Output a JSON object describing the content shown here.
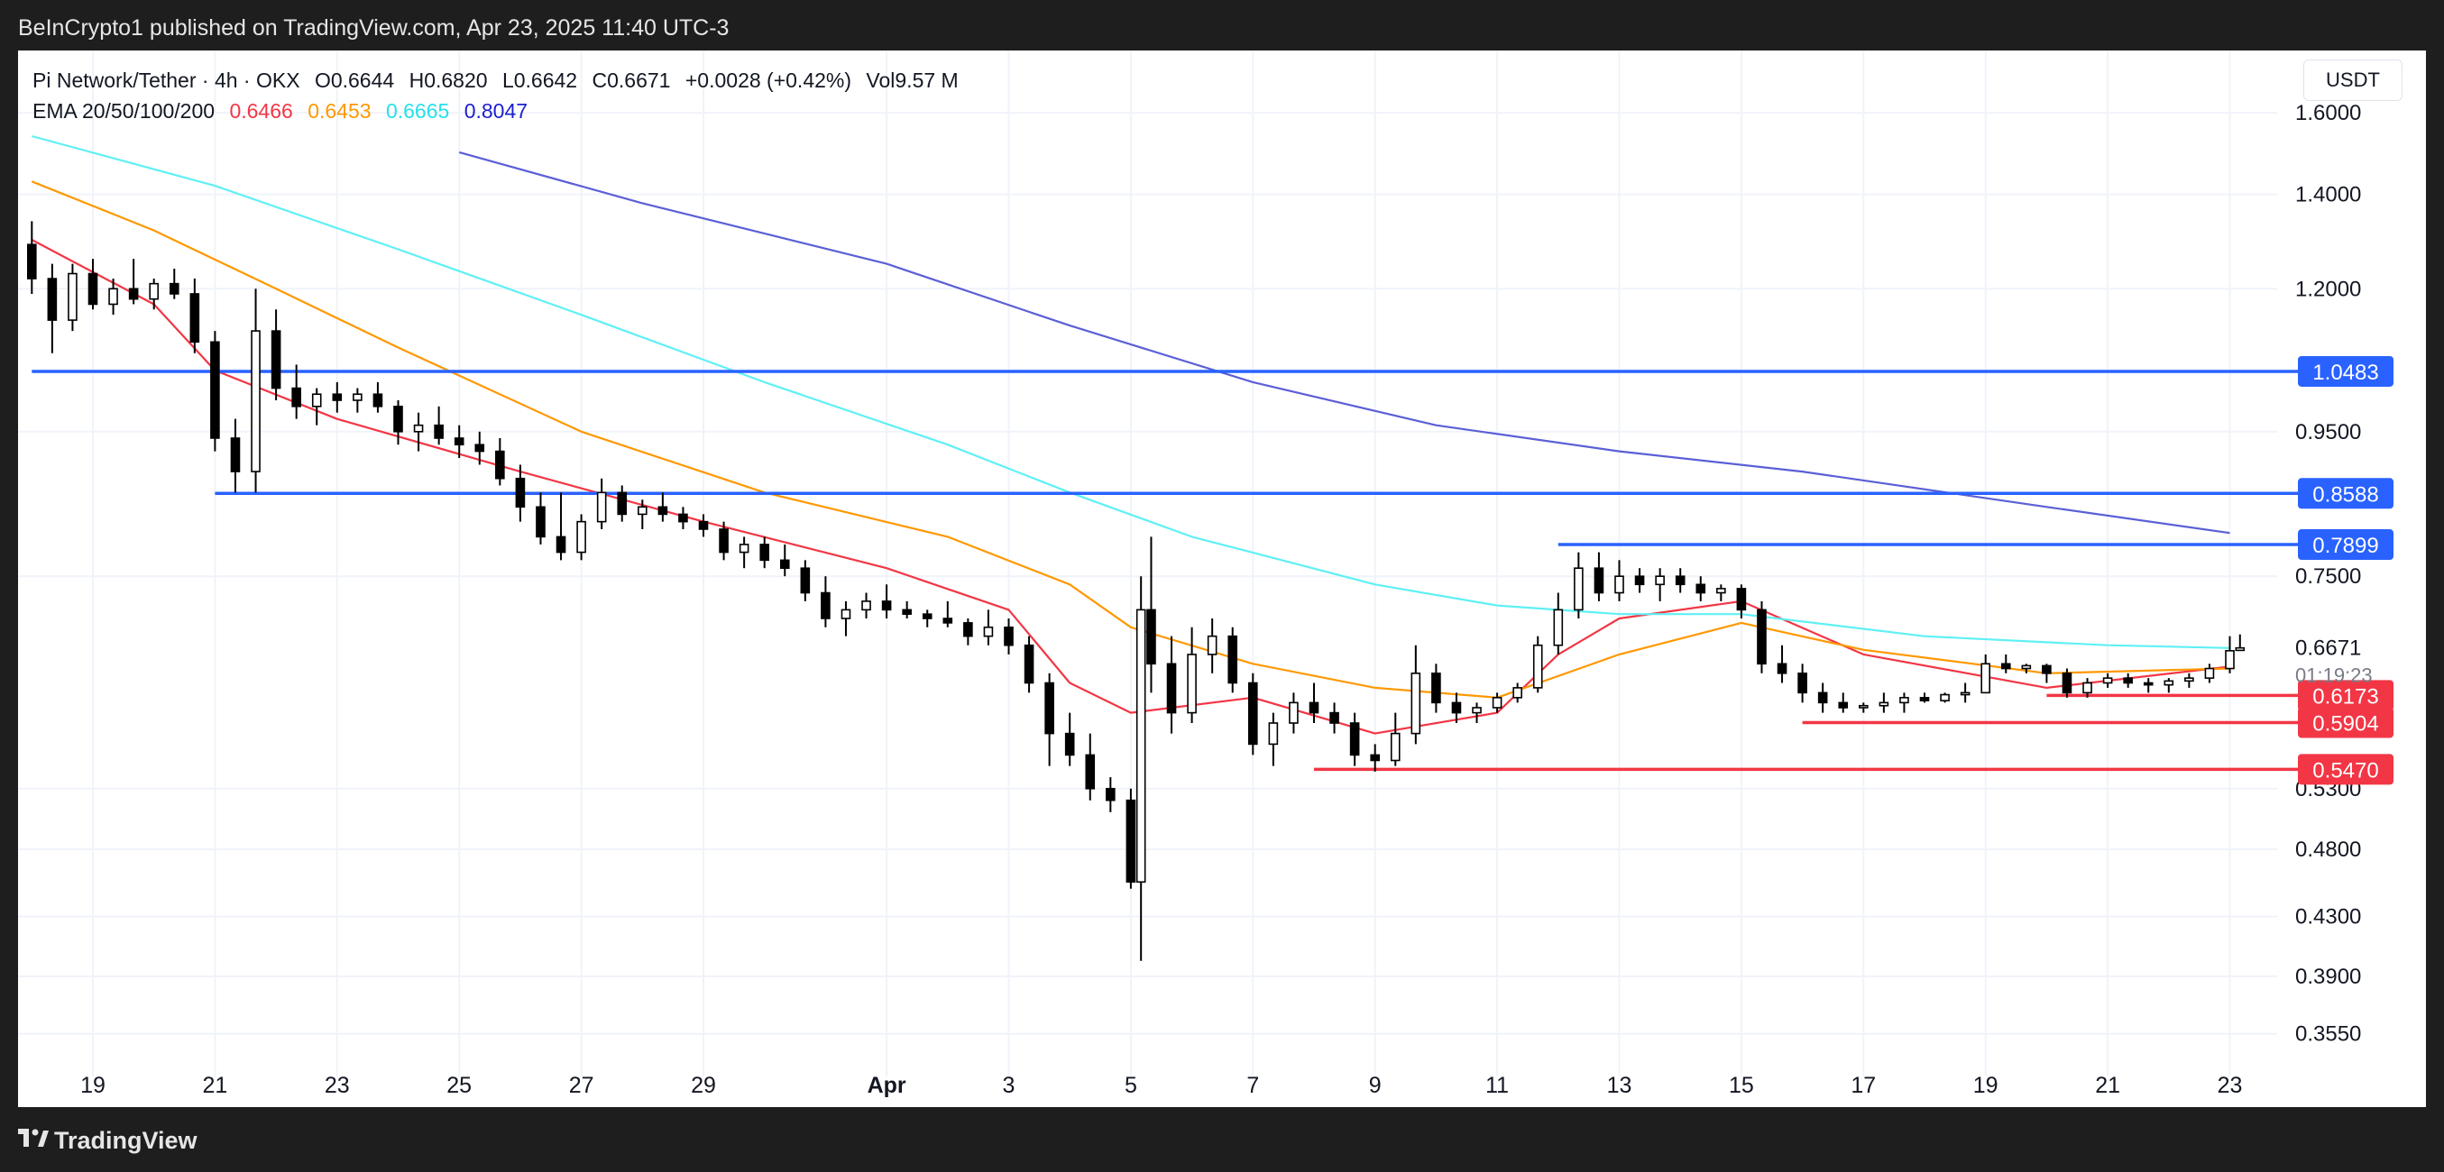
{
  "header": {
    "published_by": "BeInCrypto1 published on TradingView.com, Apr 23, 2025 11:40 UTC-3"
  },
  "legend": {
    "symbol": "Pi Network/Tether · 4h · OKX",
    "open_label": "O",
    "open_value": "0.6644",
    "high_label": "H",
    "high_value": "0.6820",
    "low_label": "L",
    "low_value": "0.6642",
    "close_label": "C",
    "close_value": "0.6671",
    "change": "+0.0028 (+0.42%)",
    "volume_label": "Vol",
    "volume_value": "9.57 M",
    "ema_label": "EMA 20/50/100/200",
    "ema20": "0.6466",
    "ema50": "0.6453",
    "ema100": "0.6665",
    "ema200": "0.8047"
  },
  "currency": "USDT",
  "footer": {
    "brand": "TradingView"
  },
  "chart_data": {
    "type": "candlestick",
    "x_axis_ticks": [
      "19",
      "21",
      "23",
      "25",
      "27",
      "29",
      "Apr",
      "3",
      "5",
      "7",
      "9",
      "11",
      "13",
      "15",
      "17",
      "19",
      "21",
      "23"
    ],
    "y_axis_ticks": [
      "1.6000",
      "1.4000",
      "1.2000",
      "0.9500",
      "0.7500",
      "0.5300",
      "0.4800",
      "0.4300",
      "0.3900",
      "0.3550"
    ],
    "y_scale": "log",
    "ylim": [
      0.34,
      1.72
    ],
    "grid": true,
    "current_price": "0.6671",
    "countdown": "01:19:23",
    "resistance_levels": [
      {
        "value": "1.0483",
        "start_date": "Mar 18",
        "color": "#2962ff"
      },
      {
        "value": "0.8588",
        "start_date": "Mar 21",
        "color": "#2962ff"
      },
      {
        "value": "0.7899",
        "start_date": "Apr 12",
        "color": "#2962ff"
      }
    ],
    "support_levels": [
      {
        "value": "0.6173",
        "start_date": "Apr 20",
        "color": "#f23645"
      },
      {
        "value": "0.5904",
        "start_date": "Apr 16",
        "color": "#f23645"
      },
      {
        "value": "0.5470",
        "start_date": "Apr 8",
        "color": "#f23645"
      }
    ],
    "ema_series": [
      {
        "name": "EMA 20",
        "color": "#f23645",
        "dates": [
          "Mar 18",
          "Mar 20",
          "Mar 21",
          "Mar 23",
          "Mar 26",
          "Mar 29",
          "Apr 1",
          "Apr 3",
          "Apr 4",
          "Apr 5",
          "Apr 7",
          "Apr 9",
          "Apr 11",
          "Apr 12",
          "Apr 13",
          "Apr 15",
          "Apr 17",
          "Apr 20",
          "Apr 23"
        ],
        "values": [
          1.3,
          1.17,
          1.05,
          0.97,
          0.89,
          0.82,
          0.76,
          0.71,
          0.63,
          0.6,
          0.615,
          0.58,
          0.6,
          0.66,
          0.7,
          0.72,
          0.66,
          0.625,
          0.647
        ]
      },
      {
        "name": "EMA 50",
        "color": "#ff9800",
        "dates": [
          "Mar 18",
          "Mar 20",
          "Mar 22",
          "Mar 24",
          "Mar 27",
          "Mar 30",
          "Apr 2",
          "Apr 4",
          "Apr 5",
          "Apr 7",
          "Apr 9",
          "Apr 11",
          "Apr 13",
          "Apr 15",
          "Apr 17",
          "Apr 20",
          "Apr 23"
        ],
        "values": [
          1.43,
          1.32,
          1.2,
          1.09,
          0.95,
          0.86,
          0.8,
          0.74,
          0.69,
          0.65,
          0.625,
          0.615,
          0.66,
          0.695,
          0.665,
          0.64,
          0.645
        ]
      },
      {
        "name": "EMA 100",
        "color": "#5ff0f5",
        "dates": [
          "Mar 18",
          "Mar 21",
          "Mar 24",
          "Mar 27",
          "Mar 30",
          "Apr 2",
          "Apr 4",
          "Apr 6",
          "Apr 9",
          "Apr 11",
          "Apr 13",
          "Apr 15",
          "Apr 18",
          "Apr 21",
          "Apr 23"
        ],
        "values": [
          1.54,
          1.42,
          1.28,
          1.15,
          1.03,
          0.93,
          0.86,
          0.8,
          0.74,
          0.715,
          0.705,
          0.705,
          0.68,
          0.67,
          0.667
        ]
      },
      {
        "name": "EMA 200",
        "color": "#5b5fd6",
        "dates": [
          "Mar 25",
          "Mar 28",
          "Apr 1",
          "Apr 4",
          "Apr 7",
          "Apr 10",
          "Apr 13",
          "Apr 16",
          "Apr 20",
          "Apr 23"
        ],
        "values": [
          1.5,
          1.38,
          1.25,
          1.13,
          1.03,
          0.96,
          0.92,
          0.89,
          0.84,
          0.805
        ]
      }
    ],
    "candles": [
      {
        "date": "Mar 18 00:00",
        "open": 1.29,
        "high": 1.34,
        "low": 1.19,
        "close": 1.22
      },
      {
        "date": "Mar 18 08:00",
        "open": 1.22,
        "high": 1.25,
        "low": 1.08,
        "close": 1.14
      },
      {
        "date": "Mar 18 16:00",
        "open": 1.14,
        "high": 1.25,
        "low": 1.12,
        "close": 1.23
      },
      {
        "date": "Mar 19 00:00",
        "open": 1.23,
        "high": 1.26,
        "low": 1.16,
        "close": 1.17
      },
      {
        "date": "Mar 19 08:00",
        "open": 1.17,
        "high": 1.22,
        "low": 1.15,
        "close": 1.2
      },
      {
        "date": "Mar 19 16:00",
        "open": 1.2,
        "high": 1.26,
        "low": 1.17,
        "close": 1.18
      },
      {
        "date": "Mar 20 00:00",
        "open": 1.18,
        "high": 1.22,
        "low": 1.16,
        "close": 1.21
      },
      {
        "date": "Mar 20 08:00",
        "open": 1.21,
        "high": 1.24,
        "low": 1.18,
        "close": 1.19
      },
      {
        "date": "Mar 20 16:00",
        "open": 1.19,
        "high": 1.22,
        "low": 1.08,
        "close": 1.1
      },
      {
        "date": "Mar 21 00:00",
        "open": 1.1,
        "high": 1.12,
        "low": 0.92,
        "close": 0.94
      },
      {
        "date": "Mar 21 08:00",
        "open": 0.94,
        "high": 0.97,
        "low": 0.86,
        "close": 0.89
      },
      {
        "date": "Mar 21 16:00",
        "open": 0.89,
        "high": 1.2,
        "low": 0.86,
        "close": 1.12
      },
      {
        "date": "Mar 22 00:00",
        "open": 1.12,
        "high": 1.16,
        "low": 1.0,
        "close": 1.02
      },
      {
        "date": "Mar 22 08:00",
        "open": 1.02,
        "high": 1.06,
        "low": 0.97,
        "close": 0.99
      },
      {
        "date": "Mar 22 16:00",
        "open": 0.99,
        "high": 1.02,
        "low": 0.96,
        "close": 1.01
      },
      {
        "date": "Mar 23 00:00",
        "open": 1.01,
        "high": 1.03,
        "low": 0.98,
        "close": 1.0
      },
      {
        "date": "Mar 23 08:00",
        "open": 1.0,
        "high": 1.02,
        "low": 0.98,
        "close": 1.01
      },
      {
        "date": "Mar 23 16:00",
        "open": 1.01,
        "high": 1.03,
        "low": 0.98,
        "close": 0.99
      },
      {
        "date": "Mar 24 00:00",
        "open": 0.99,
        "high": 1.0,
        "low": 0.93,
        "close": 0.95
      },
      {
        "date": "Mar 24 08:00",
        "open": 0.95,
        "high": 0.98,
        "low": 0.92,
        "close": 0.96
      },
      {
        "date": "Mar 24 16:00",
        "open": 0.96,
        "high": 0.99,
        "low": 0.93,
        "close": 0.94
      },
      {
        "date": "Mar 25 00:00",
        "open": 0.94,
        "high": 0.96,
        "low": 0.91,
        "close": 0.93
      },
      {
        "date": "Mar 25 08:00",
        "open": 0.93,
        "high": 0.95,
        "low": 0.9,
        "close": 0.92
      },
      {
        "date": "Mar 25 16:00",
        "open": 0.92,
        "high": 0.94,
        "low": 0.87,
        "close": 0.88
      },
      {
        "date": "Mar 26 00:00",
        "open": 0.88,
        "high": 0.9,
        "low": 0.82,
        "close": 0.84
      },
      {
        "date": "Mar 26 08:00",
        "open": 0.84,
        "high": 0.86,
        "low": 0.79,
        "close": 0.8
      },
      {
        "date": "Mar 26 16:00",
        "open": 0.8,
        "high": 0.86,
        "low": 0.77,
        "close": 0.78
      },
      {
        "date": "Mar 27 00:00",
        "open": 0.78,
        "high": 0.83,
        "low": 0.77,
        "close": 0.82
      },
      {
        "date": "Mar 27 08:00",
        "open": 0.82,
        "high": 0.88,
        "low": 0.81,
        "close": 0.86
      },
      {
        "date": "Mar 27 16:00",
        "open": 0.86,
        "high": 0.87,
        "low": 0.82,
        "close": 0.83
      },
      {
        "date": "Mar 28 00:00",
        "open": 0.83,
        "high": 0.85,
        "low": 0.81,
        "close": 0.84
      },
      {
        "date": "Mar 28 08:00",
        "open": 0.84,
        "high": 0.86,
        "low": 0.82,
        "close": 0.83
      },
      {
        "date": "Mar 28 16:00",
        "open": 0.83,
        "high": 0.84,
        "low": 0.81,
        "close": 0.82
      },
      {
        "date": "Mar 29 00:00",
        "open": 0.82,
        "high": 0.83,
        "low": 0.8,
        "close": 0.81
      },
      {
        "date": "Mar 29 08:00",
        "open": 0.81,
        "high": 0.82,
        "low": 0.77,
        "close": 0.78
      },
      {
        "date": "Mar 29 16:00",
        "open": 0.78,
        "high": 0.8,
        "low": 0.76,
        "close": 0.79
      },
      {
        "date": "Mar 30 00:00",
        "open": 0.79,
        "high": 0.8,
        "low": 0.76,
        "close": 0.77
      },
      {
        "date": "Mar 30 08:00",
        "open": 0.77,
        "high": 0.79,
        "low": 0.75,
        "close": 0.76
      },
      {
        "date": "Mar 30 16:00",
        "open": 0.76,
        "high": 0.77,
        "low": 0.72,
        "close": 0.73
      },
      {
        "date": "Mar 31 00:00",
        "open": 0.73,
        "high": 0.75,
        "low": 0.69,
        "close": 0.7
      },
      {
        "date": "Mar 31 08:00",
        "open": 0.7,
        "high": 0.72,
        "low": 0.68,
        "close": 0.71
      },
      {
        "date": "Mar 31 16:00",
        "open": 0.71,
        "high": 0.73,
        "low": 0.7,
        "close": 0.72
      },
      {
        "date": "Apr 1 00:00",
        "open": 0.72,
        "high": 0.74,
        "low": 0.7,
        "close": 0.71
      },
      {
        "date": "Apr 1 08:00",
        "open": 0.71,
        "high": 0.72,
        "low": 0.7,
        "close": 0.705
      },
      {
        "date": "Apr 1 16:00",
        "open": 0.705,
        "high": 0.71,
        "low": 0.69,
        "close": 0.7
      },
      {
        "date": "Apr 2 00:00",
        "open": 0.7,
        "high": 0.72,
        "low": 0.69,
        "close": 0.695
      },
      {
        "date": "Apr 2 08:00",
        "open": 0.695,
        "high": 0.7,
        "low": 0.67,
        "close": 0.68
      },
      {
        "date": "Apr 2 16:00",
        "open": 0.68,
        "high": 0.71,
        "low": 0.67,
        "close": 0.69
      },
      {
        "date": "Apr 3 00:00",
        "open": 0.69,
        "high": 0.7,
        "low": 0.66,
        "close": 0.67
      },
      {
        "date": "Apr 3 08:00",
        "open": 0.67,
        "high": 0.68,
        "low": 0.62,
        "close": 0.63
      },
      {
        "date": "Apr 3 16:00",
        "open": 0.63,
        "high": 0.64,
        "low": 0.55,
        "close": 0.58
      },
      {
        "date": "Apr 4 00:00",
        "open": 0.58,
        "high": 0.6,
        "low": 0.55,
        "close": 0.56
      },
      {
        "date": "Apr 4 08:00",
        "open": 0.56,
        "high": 0.58,
        "low": 0.52,
        "close": 0.53
      },
      {
        "date": "Apr 4 16:00",
        "open": 0.53,
        "high": 0.54,
        "low": 0.51,
        "close": 0.52
      },
      {
        "date": "Apr 5 00:00",
        "open": 0.52,
        "high": 0.53,
        "low": 0.45,
        "close": 0.455
      },
      {
        "date": "Apr 5 04:00",
        "open": 0.455,
        "high": 0.75,
        "low": 0.4,
        "close": 0.71
      },
      {
        "date": "Apr 5 08:00",
        "open": 0.71,
        "high": 0.8,
        "low": 0.62,
        "close": 0.65
      },
      {
        "date": "Apr 5 16:00",
        "open": 0.65,
        "high": 0.68,
        "low": 0.58,
        "close": 0.6
      },
      {
        "date": "Apr 6 00:00",
        "open": 0.6,
        "high": 0.69,
        "low": 0.59,
        "close": 0.66
      },
      {
        "date": "Apr 6 08:00",
        "open": 0.66,
        "high": 0.7,
        "low": 0.64,
        "close": 0.68
      },
      {
        "date": "Apr 6 16:00",
        "open": 0.68,
        "high": 0.69,
        "low": 0.62,
        "close": 0.63
      },
      {
        "date": "Apr 7 00:00",
        "open": 0.63,
        "high": 0.64,
        "low": 0.56,
        "close": 0.57
      },
      {
        "date": "Apr 7 08:00",
        "open": 0.57,
        "high": 0.6,
        "low": 0.55,
        "close": 0.59
      },
      {
        "date": "Apr 7 16:00",
        "open": 0.59,
        "high": 0.62,
        "low": 0.58,
        "close": 0.61
      },
      {
        "date": "Apr 8 00:00",
        "open": 0.61,
        "high": 0.63,
        "low": 0.59,
        "close": 0.6
      },
      {
        "date": "Apr 8 08:00",
        "open": 0.6,
        "high": 0.61,
        "low": 0.58,
        "close": 0.59
      },
      {
        "date": "Apr 8 16:00",
        "open": 0.59,
        "high": 0.6,
        "low": 0.55,
        "close": 0.56
      },
      {
        "date": "Apr 9 00:00",
        "open": 0.56,
        "high": 0.57,
        "low": 0.545,
        "close": 0.555
      },
      {
        "date": "Apr 9 08:00",
        "open": 0.555,
        "high": 0.6,
        "low": 0.55,
        "close": 0.58
      },
      {
        "date": "Apr 9 16:00",
        "open": 0.58,
        "high": 0.67,
        "low": 0.57,
        "close": 0.64
      },
      {
        "date": "Apr 10 00:00",
        "open": 0.64,
        "high": 0.65,
        "low": 0.6,
        "close": 0.61
      },
      {
        "date": "Apr 10 08:00",
        "open": 0.61,
        "high": 0.62,
        "low": 0.59,
        "close": 0.6
      },
      {
        "date": "Apr 10 16:00",
        "open": 0.6,
        "high": 0.61,
        "low": 0.59,
        "close": 0.605
      },
      {
        "date": "Apr 11 00:00",
        "open": 0.605,
        "high": 0.62,
        "low": 0.6,
        "close": 0.615
      },
      {
        "date": "Apr 11 08:00",
        "open": 0.615,
        "high": 0.63,
        "low": 0.61,
        "close": 0.625
      },
      {
        "date": "Apr 11 16:00",
        "open": 0.625,
        "high": 0.68,
        "low": 0.62,
        "close": 0.67
      },
      {
        "date": "Apr 12 00:00",
        "open": 0.67,
        "high": 0.73,
        "low": 0.66,
        "close": 0.71
      },
      {
        "date": "Apr 12 08:00",
        "open": 0.71,
        "high": 0.78,
        "low": 0.7,
        "close": 0.76
      },
      {
        "date": "Apr 12 16:00",
        "open": 0.76,
        "high": 0.78,
        "low": 0.72,
        "close": 0.73
      },
      {
        "date": "Apr 13 00:00",
        "open": 0.73,
        "high": 0.77,
        "low": 0.72,
        "close": 0.75
      },
      {
        "date": "Apr 13 08:00",
        "open": 0.75,
        "high": 0.76,
        "low": 0.73,
        "close": 0.74
      },
      {
        "date": "Apr 13 16:00",
        "open": 0.74,
        "high": 0.76,
        "low": 0.72,
        "close": 0.75
      },
      {
        "date": "Apr 14 00:00",
        "open": 0.75,
        "high": 0.76,
        "low": 0.73,
        "close": 0.74
      },
      {
        "date": "Apr 14 08:00",
        "open": 0.74,
        "high": 0.75,
        "low": 0.72,
        "close": 0.73
      },
      {
        "date": "Apr 14 16:00",
        "open": 0.73,
        "high": 0.74,
        "low": 0.72,
        "close": 0.735
      },
      {
        "date": "Apr 15 00:00",
        "open": 0.735,
        "high": 0.74,
        "low": 0.7,
        "close": 0.71
      },
      {
        "date": "Apr 15 08:00",
        "open": 0.71,
        "high": 0.72,
        "low": 0.64,
        "close": 0.65
      },
      {
        "date": "Apr 15 16:00",
        "open": 0.65,
        "high": 0.67,
        "low": 0.63,
        "close": 0.64
      },
      {
        "date": "Apr 16 00:00",
        "open": 0.64,
        "high": 0.65,
        "low": 0.61,
        "close": 0.62
      },
      {
        "date": "Apr 16 08:00",
        "open": 0.62,
        "high": 0.63,
        "low": 0.6,
        "close": 0.61
      },
      {
        "date": "Apr 16 16:00",
        "open": 0.61,
        "high": 0.62,
        "low": 0.6,
        "close": 0.605
      },
      {
        "date": "Apr 17 00:00",
        "open": 0.605,
        "high": 0.61,
        "low": 0.6,
        "close": 0.607
      },
      {
        "date": "Apr 17 08:00",
        "open": 0.607,
        "high": 0.62,
        "low": 0.6,
        "close": 0.61
      },
      {
        "date": "Apr 17 16:00",
        "open": 0.61,
        "high": 0.62,
        "low": 0.6,
        "close": 0.615
      },
      {
        "date": "Apr 18 00:00",
        "open": 0.615,
        "high": 0.62,
        "low": 0.61,
        "close": 0.612
      },
      {
        "date": "Apr 18 08:00",
        "open": 0.612,
        "high": 0.62,
        "low": 0.61,
        "close": 0.618
      },
      {
        "date": "Apr 18 16:00",
        "open": 0.618,
        "high": 0.63,
        "low": 0.61,
        "close": 0.62
      },
      {
        "date": "Apr 19 00:00",
        "open": 0.62,
        "high": 0.66,
        "low": 0.62,
        "close": 0.65
      },
      {
        "date": "Apr 19 08:00",
        "open": 0.65,
        "high": 0.66,
        "low": 0.64,
        "close": 0.645
      },
      {
        "date": "Apr 19 16:00",
        "open": 0.645,
        "high": 0.65,
        "low": 0.64,
        "close": 0.648
      },
      {
        "date": "Apr 20 00:00",
        "open": 0.648,
        "high": 0.65,
        "low": 0.63,
        "close": 0.64
      },
      {
        "date": "Apr 20 08:00",
        "open": 0.64,
        "high": 0.645,
        "low": 0.615,
        "close": 0.62
      },
      {
        "date": "Apr 20 16:00",
        "open": 0.62,
        "high": 0.635,
        "low": 0.615,
        "close": 0.63
      },
      {
        "date": "Apr 21 00:00",
        "open": 0.63,
        "high": 0.64,
        "low": 0.625,
        "close": 0.635
      },
      {
        "date": "Apr 21 08:00",
        "open": 0.635,
        "high": 0.64,
        "low": 0.625,
        "close": 0.63
      },
      {
        "date": "Apr 21 16:00",
        "open": 0.63,
        "high": 0.635,
        "low": 0.62,
        "close": 0.628
      },
      {
        "date": "Apr 22 00:00",
        "open": 0.628,
        "high": 0.635,
        "low": 0.62,
        "close": 0.632
      },
      {
        "date": "Apr 22 08:00",
        "open": 0.632,
        "high": 0.64,
        "low": 0.625,
        "close": 0.635
      },
      {
        "date": "Apr 22 16:00",
        "open": 0.635,
        "high": 0.65,
        "low": 0.63,
        "close": 0.645
      },
      {
        "date": "Apr 23 00:00",
        "open": 0.645,
        "high": 0.68,
        "low": 0.64,
        "close": 0.664
      },
      {
        "date": "Apr 23 04:00",
        "open": 0.6644,
        "high": 0.682,
        "low": 0.6642,
        "close": 0.6671
      }
    ]
  }
}
